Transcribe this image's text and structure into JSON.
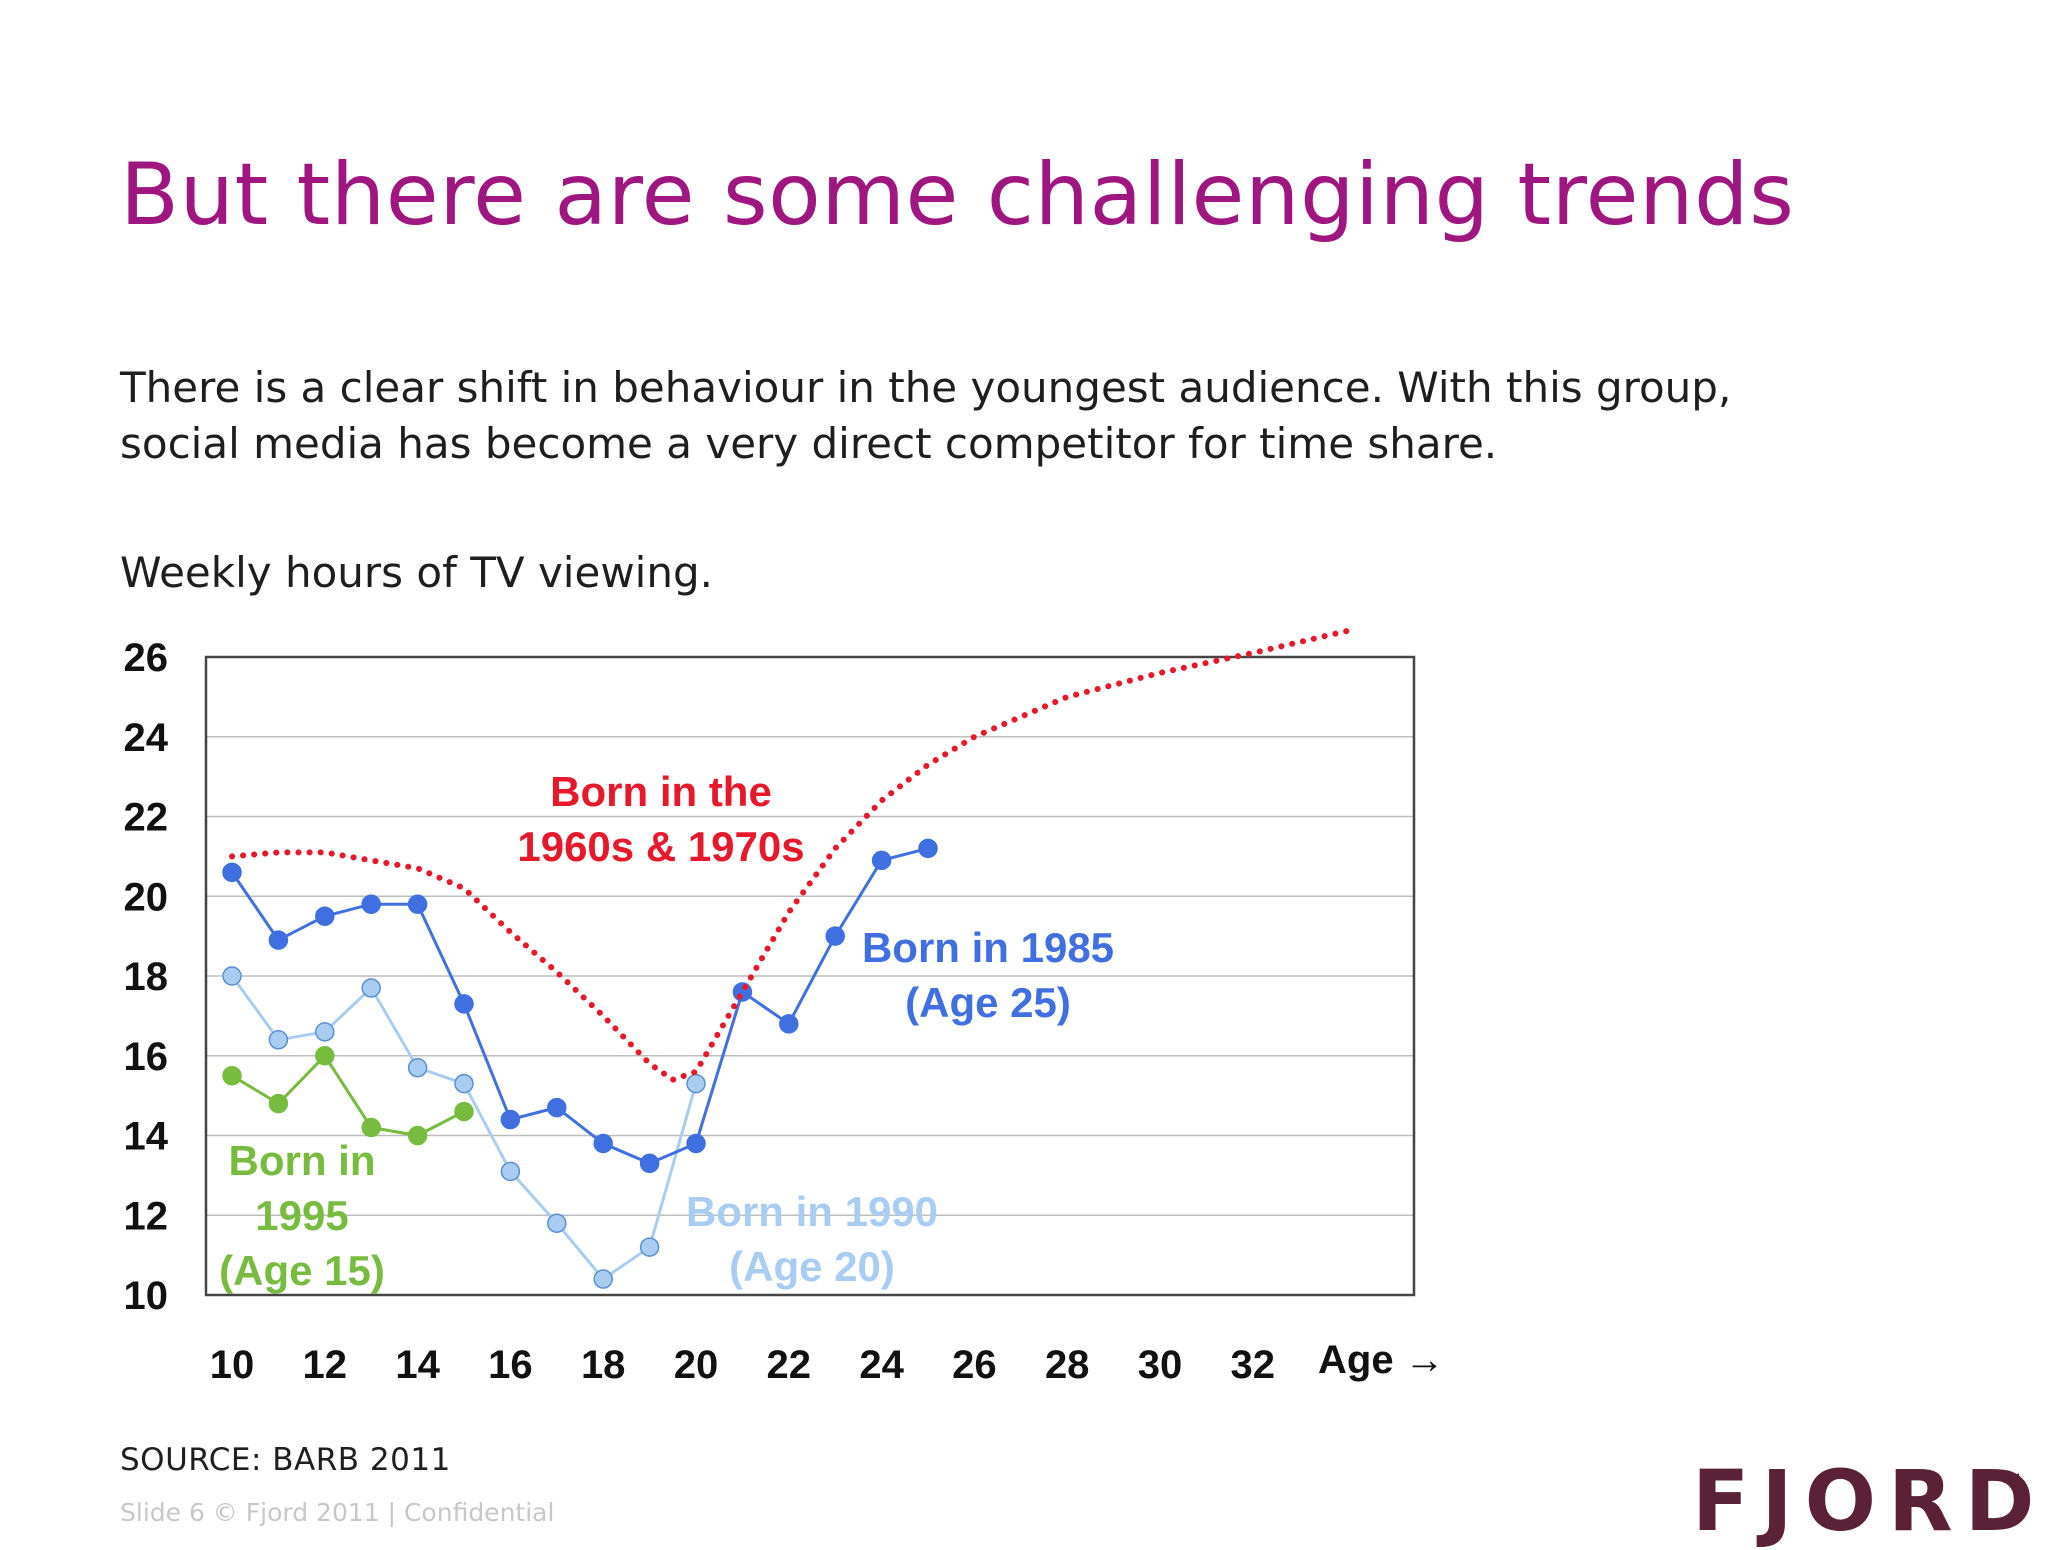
{
  "slide": {
    "title": "But there are some challenging trends",
    "body_line1": "There is a clear shift in behaviour in the youngest audience. With this group,",
    "body_line2": "social media has become a very direct competitor for time share.",
    "subtitle": "Weekly hours of TV viewing.",
    "source": "SOURCE: BARB 2011",
    "footer": "Slide 6  © Fjord 2011 | Confidential",
    "logo": "FJORD",
    "logo_mark": "TM"
  },
  "colors": {
    "title": "#a01680",
    "s1985": "#3f6fe0",
    "s1990": "#a9cdf2",
    "s1995": "#77bb3f",
    "s6070": "#e8182b"
  },
  "chart_data": {
    "type": "line",
    "title": "Weekly hours of TV viewing.",
    "xlabel": "Age →",
    "ylabel": "",
    "xlim": [
      10,
      36
    ],
    "ylim": [
      10,
      26
    ],
    "x_ticks": [
      10,
      12,
      14,
      16,
      18,
      20,
      22,
      24,
      26,
      28,
      30,
      32
    ],
    "y_ticks": [
      10,
      12,
      14,
      16,
      18,
      20,
      22,
      24,
      26
    ],
    "grid": true,
    "series": [
      {
        "name": "Born in 1985 (Age 25)",
        "color": "#3f6fe0",
        "style": "solid",
        "markers": true,
        "x": [
          10,
          11,
          12,
          13,
          14,
          15,
          16,
          17,
          18,
          19,
          20,
          21,
          22,
          23,
          24,
          25
        ],
        "y": [
          20.6,
          18.9,
          19.5,
          19.8,
          19.8,
          17.3,
          14.4,
          14.7,
          13.8,
          13.3,
          13.8,
          17.6,
          16.8,
          19.0,
          20.9,
          21.2
        ]
      },
      {
        "name": "Born in 1990 (Age 20)",
        "color": "#a9cdf2",
        "style": "solid",
        "markers": true,
        "x": [
          10,
          11,
          12,
          13,
          14,
          15,
          16,
          17,
          18,
          19,
          20
        ],
        "y": [
          18.0,
          16.4,
          16.6,
          17.7,
          15.7,
          15.3,
          13.1,
          11.8,
          10.4,
          11.2,
          15.3
        ]
      },
      {
        "name": "Born in 1995 (Age 15)",
        "color": "#77bb3f",
        "style": "solid",
        "markers": true,
        "x": [
          10,
          11,
          12,
          13,
          14,
          15
        ],
        "y": [
          15.5,
          14.8,
          16.0,
          14.2,
          14.0,
          14.6
        ]
      },
      {
        "name": "Born in the 1960s & 1970s",
        "color": "#e8182b",
        "style": "dotted",
        "markers": false,
        "x": [
          10,
          11,
          12,
          13,
          14,
          15,
          16,
          17,
          18,
          19,
          19.5,
          20,
          21,
          22,
          23,
          24,
          25,
          26,
          28,
          30,
          32,
          34.2
        ],
        "y": [
          21.0,
          21.1,
          21.1,
          20.9,
          20.7,
          20.2,
          19.1,
          18.1,
          17.0,
          15.8,
          15.4,
          15.6,
          17.6,
          19.6,
          21.2,
          22.4,
          23.3,
          24.0,
          25.0,
          25.6,
          26.1,
          26.7
        ]
      }
    ],
    "labels": [
      {
        "series": 3,
        "lines": [
          "Born in the",
          "1960s & 1970s"
        ]
      },
      {
        "series": 0,
        "lines": [
          "Born in 1985",
          "(Age 25)"
        ]
      },
      {
        "series": 1,
        "lines": [
          "Born in 1990",
          "(Age 20)"
        ]
      },
      {
        "series": 2,
        "lines": [
          "Born in",
          "1995",
          "(Age 15)"
        ]
      }
    ]
  }
}
